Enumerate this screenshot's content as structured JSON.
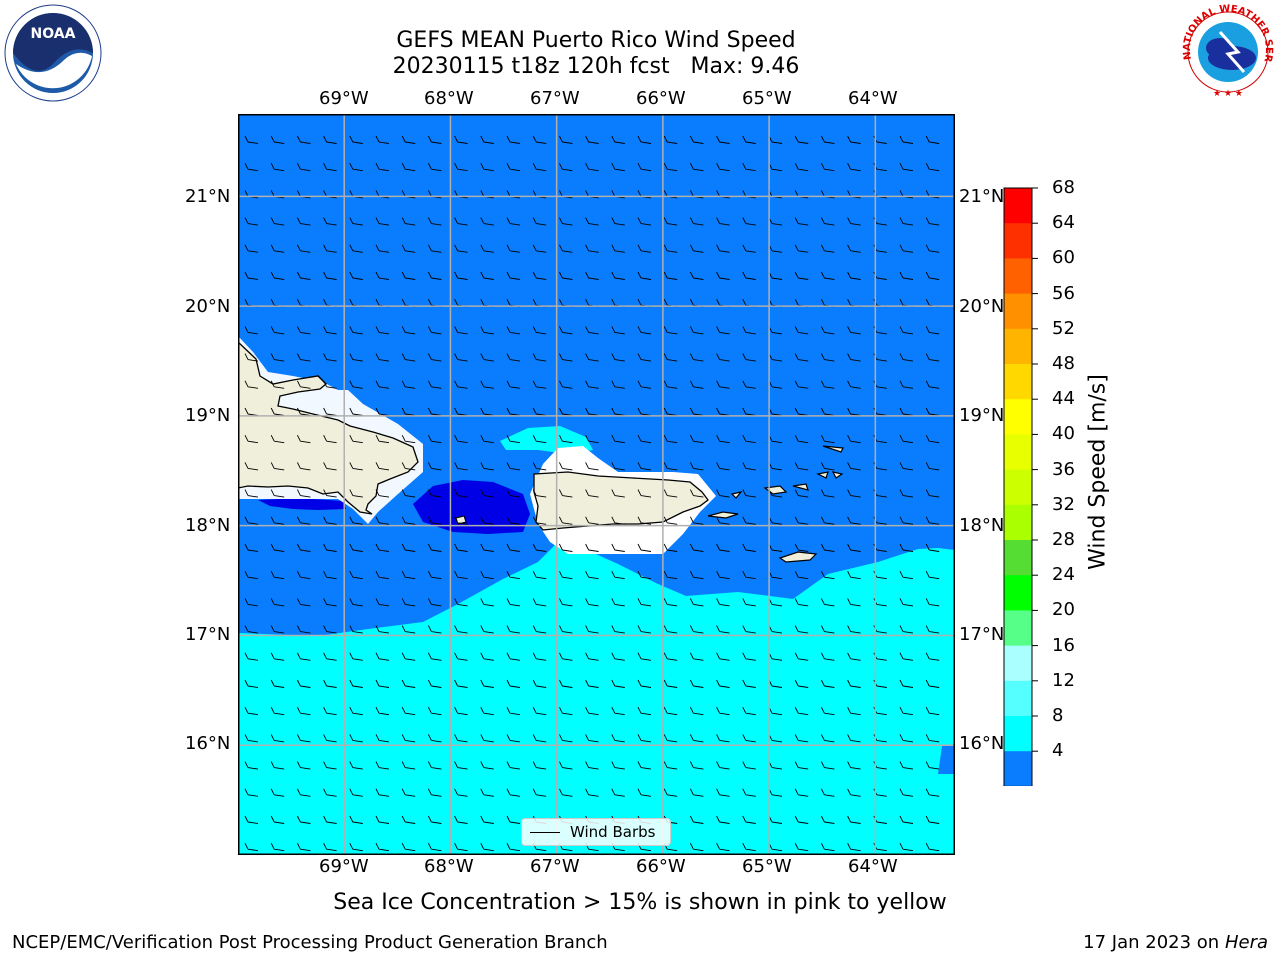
{
  "title": {
    "line1": "GEFS MEAN Puerto Rico Wind Speed",
    "line2": "20230115 t18z 120h fcst   Max: 9.46"
  },
  "map": {
    "lon_labels": [
      "69°W",
      "68°W",
      "67°W",
      "66°W",
      "65°W",
      "64°W"
    ],
    "lat_labels": [
      "21°N",
      "20°N",
      "19°N",
      "18°N",
      "17°N",
      "16°N"
    ],
    "extent": {
      "lon_min": -70.0,
      "lon_max": -63.25,
      "lat_min": 15.0,
      "lat_max": 21.75
    },
    "colors": {
      "ocean_fill_4_8": "#0a7dff",
      "fill_8_12": "#00ffff",
      "fill_below_4": "#0000e6",
      "land": "#efefdc",
      "gridline": "#b0b0b0"
    },
    "legend_label": "Wind Barbs"
  },
  "colorbar": {
    "label": "Wind Speed [m/s]",
    "ticks": [
      "68",
      "64",
      "60",
      "56",
      "52",
      "48",
      "44",
      "40",
      "36",
      "32",
      "28",
      "24",
      "20",
      "16",
      "12",
      "8",
      "4"
    ],
    "colors": [
      "#ff0000",
      "#ff3000",
      "#ff6000",
      "#ff9000",
      "#ffb400",
      "#ffd800",
      "#ffff00",
      "#e8ff00",
      "#ccff00",
      "#aaff00",
      "#55dd33",
      "#00ff00",
      "#55ff88",
      "#aaffff",
      "#55ffff",
      "#00ffff",
      "#0a7dff"
    ],
    "extend_color": "#0000e6"
  },
  "caption": "Sea Ice Concentration > 15% is shown in pink to yellow",
  "footer": {
    "left": "NCEP/EMC/Verification Post Processing Product Generation Branch",
    "right_date": "17 Jan 2023 on ",
    "right_machine": "Hera"
  },
  "logos": {
    "noaa_text": "NOAA",
    "nws_text": "NATIONAL WEATHER SERVICE"
  }
}
